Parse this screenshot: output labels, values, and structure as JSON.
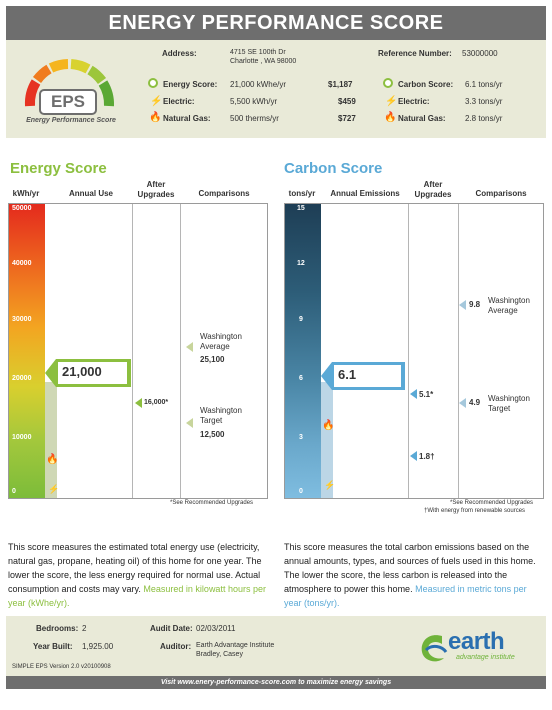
{
  "title": "ENERGY PERFORMANCE SCORE",
  "logo": {
    "letters": "EPS",
    "caption": "Energy Performance Score"
  },
  "address": {
    "label": "Address:",
    "line1": "4715 SE 100th Dr",
    "line2": "Charlotte , WA 98000"
  },
  "reference": {
    "label": "Reference Number:",
    "value": "53000000"
  },
  "energy_summary": {
    "score_label": "Energy Score:",
    "score_value": "21,000 kWhe/yr",
    "score_cost": "$1,187",
    "electric_label": "Electric:",
    "electric_value": "5,500 kWh/yr",
    "electric_cost": "$459",
    "gas_label": "Natural Gas:",
    "gas_value": "500 therms/yr",
    "gas_cost": "$727"
  },
  "carbon_summary": {
    "score_label": "Carbon Score:",
    "score_value": "6.1 tons/yr",
    "electric_label": "Electric:",
    "electric_value": "3.3 tons/yr",
    "gas_label": "Natural Gas:",
    "gas_value": "2.8 tons/yr"
  },
  "energy_chart": {
    "title": "Energy Score",
    "unit_header": "kWh/yr",
    "col_annual": "Annual Use",
    "col_after": "After Upgrades",
    "col_comparisons": "Comparisons",
    "ticks": [
      "50000",
      "40000",
      "30000",
      "20000",
      "10000",
      "0"
    ],
    "score": "21,000",
    "after": "16,000*",
    "comp1_name": "Washington Average",
    "comp1_value": "25,100",
    "comp2_name": "Washington Target",
    "comp2_value": "12,500",
    "footnote": "*See Recommended Upgrades"
  },
  "carbon_chart": {
    "title": "Carbon Score",
    "unit_header": "tons/yr",
    "col_annual": "Annual Emissions",
    "col_after": "After Upgrades",
    "col_comparisons": "Comparisons",
    "ticks": [
      "15",
      "12",
      "9",
      "6",
      "3",
      "0"
    ],
    "score": "6.1",
    "after1": "5.1*",
    "after2": "1.8†",
    "comp1_value": "9.8",
    "comp1_name": "Washington Average",
    "comp2_value": "4.9",
    "comp2_name": "Washington Target",
    "footnote1": "*See Recommended Upgrades",
    "footnote2": "†With energy from renewable sources"
  },
  "energy_desc": {
    "text": "This score measures the estimated total energy use (electricity, natural gas, propane, heating oil) of this home for one year.  The lower the score, the less energy required for normal use. Actual consumption and costs may vary.",
    "measure": "Measured in kilowatt hours per year (kWhe/yr)."
  },
  "carbon_desc": {
    "text": "This score measures the total carbon emissions based on the annual amounts, types, and sources of fuels used in this home. The lower the score, the less carbon is released into the atmosphere to power this home.",
    "measure": "Measured in metric tons per year (tons/yr)."
  },
  "footer": {
    "bedrooms_label": "Bedrooms:",
    "bedrooms_value": "2",
    "year_label": "Year Built:",
    "year_value": "1,925.00",
    "audit_label": "Audit Date:",
    "audit_value": "02/03/2011",
    "auditor_label": "Auditor:",
    "auditor_line1": "Earth Advantage Institute",
    "auditor_line2": "Bradley, Casey",
    "version": "SIMPLE EPS Version 2.0 v20100908",
    "brand_main": "earth",
    "brand_sub": "advantage institute"
  },
  "bottom_banner": "Visit www.enery-performance-score.com to maximize energy savings",
  "colors": {
    "energy_green": "#8cbf3f",
    "carbon_blue": "#5aa9d6",
    "header_gray": "#6e6e6e"
  }
}
